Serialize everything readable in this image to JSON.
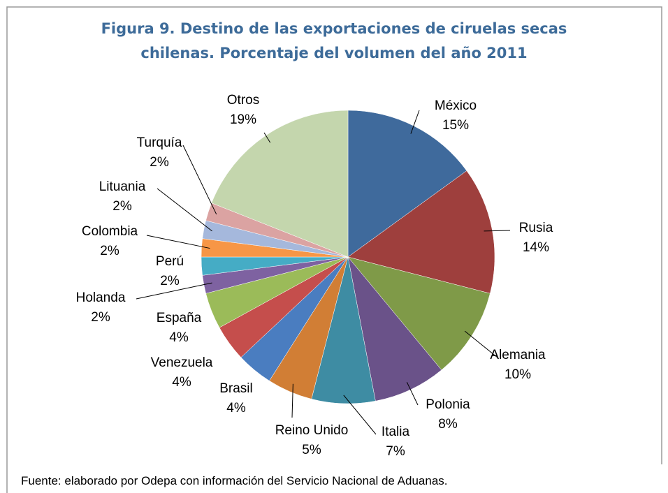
{
  "chart_data": {
    "type": "pie",
    "title": [
      "Figura 9. Destino de las exportaciones de ciruelas secas",
      "chilenas. Porcentaje del volumen del año 2011"
    ],
    "categories": [
      "México",
      "Rusia",
      "Alemania",
      "Polonia",
      "Italia",
      "Reino Unido",
      "Brasil",
      "Venezuela",
      "España",
      "Holanda",
      "Perú",
      "Colombia",
      "Lituania",
      "Turquía",
      "Otros"
    ],
    "values": [
      15,
      14,
      10,
      8,
      7,
      5,
      4,
      4,
      4,
      2,
      2,
      2,
      2,
      2,
      19
    ],
    "value_labels": [
      "15%",
      "14%",
      "10%",
      "8%",
      "7%",
      "5%",
      "4%",
      "4%",
      "4%",
      "2%",
      "2%",
      "2%",
      "2%",
      "2%",
      "19%"
    ],
    "colors": [
      "#3f6a9c",
      "#9e3f3d",
      "#7f9a48",
      "#6a5289",
      "#3e8ca3",
      "#d17e35",
      "#4a7dc0",
      "#c54e4c",
      "#9bbb59",
      "#7e62a1",
      "#45acc5",
      "#f79646",
      "#a5b8dc",
      "#dba3a2",
      "#c4d6ad"
    ],
    "source": "Fuente: elaborado por Odepa con información del Servicio Nacional de Aduanas."
  }
}
